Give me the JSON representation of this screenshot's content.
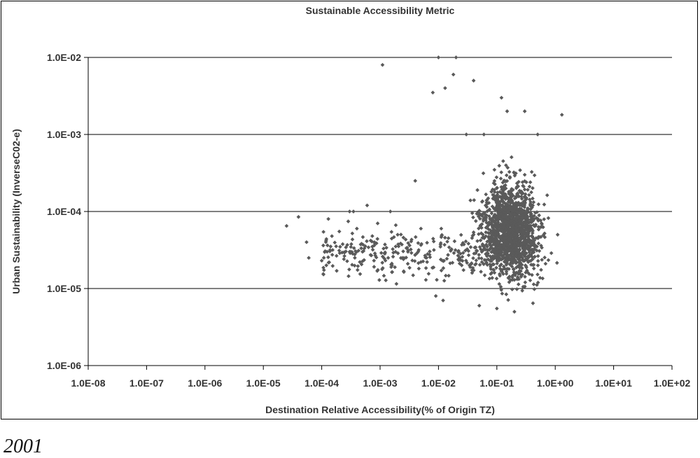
{
  "caption": "2001",
  "chart_data": {
    "type": "scatter",
    "title": "Sustainable Accessibility Metric",
    "xlabel": "Destination Relative Accessibility(% of Origin TZ)",
    "ylabel": "Urban Sustainability (InverseC02-e)",
    "x_scale": "log",
    "y_scale": "log",
    "xlim": [
      1e-08,
      100
    ],
    "ylim": [
      1e-06,
      0.01
    ],
    "x_ticks": [
      1e-08,
      1e-07,
      1e-06,
      1e-05,
      0.0001,
      0.001,
      0.01,
      0.1,
      1,
      10,
      100
    ],
    "x_tick_labels": [
      "1.0E-08",
      "1.0E-07",
      "1.0E-06",
      "1.0E-05",
      "1.0E-04",
      "1.0E-03",
      "1.0E-02",
      "1.0E-01",
      "1.0E+00",
      "1.0E+01",
      "1.0E+02"
    ],
    "y_ticks": [
      1e-06,
      1e-05,
      0.0001,
      0.001,
      0.01
    ],
    "y_tick_labels": [
      "1.0E-06",
      "1.0E-05",
      "1.0E-04",
      "1.0E-03",
      "1.0E-02"
    ],
    "grid": "horizontal major",
    "marker_color": "#5a5a5a",
    "series": [
      {
        "points": [
          [
            2.5e-05,
            6.5e-05
          ],
          [
            4e-05,
            8.5e-05
          ],
          [
            5.5e-05,
            4e-05
          ],
          [
            6e-05,
            2.5e-05
          ],
          [
            0.0001,
            2.3e-05
          ],
          [
            0.00012,
            2e-05
          ],
          [
            0.00013,
            8e-05
          ],
          [
            0.0002,
            5.5e-05
          ],
          [
            0.0003,
            0.0001
          ],
          [
            0.00035,
            0.0001
          ],
          [
            0.0004,
            6e-05
          ],
          [
            0.0006,
            0.00012
          ],
          [
            0.0003,
            3e-05
          ],
          [
            0.0005,
            3e-05
          ],
          [
            0.0008,
            4e-05
          ],
          [
            0.0011,
            0.008
          ],
          [
            0.0015,
            0.0001
          ],
          [
            0.0016,
            2e-05
          ],
          [
            0.002,
            5e-05
          ],
          [
            0.003,
            3e-05
          ],
          [
            0.004,
            0.00025
          ],
          [
            0.005,
            6e-05
          ],
          [
            0.008,
            0.0035
          ],
          [
            0.01,
            0.01
          ],
          [
            0.013,
            0.004
          ],
          [
            0.02,
            0.01
          ],
          [
            0.018,
            0.006
          ],
          [
            0.009,
            8e-06
          ],
          [
            0.012,
            7e-06
          ],
          [
            0.025,
            2e-05
          ],
          [
            0.03,
            0.001
          ],
          [
            0.04,
            0.005
          ],
          [
            0.05,
            6e-06
          ],
          [
            0.06,
            0.001
          ],
          [
            0.1,
            5.5e-06
          ],
          [
            0.2,
            5e-06
          ],
          [
            0.12,
            0.003
          ],
          [
            0.15,
            0.002
          ],
          [
            0.3,
            0.002
          ],
          [
            0.5,
            0.001
          ],
          [
            1.3,
            0.0018
          ],
          [
            1.1,
            5e-05
          ],
          [
            0.1,
            0.0002
          ],
          [
            0.15,
            0.0001
          ],
          [
            0.2,
            5e-05
          ],
          [
            0.3,
            0.0003
          ],
          [
            0.08,
            2e-05
          ],
          [
            0.4,
            1.5e-05
          ]
        ]
      }
    ]
  }
}
